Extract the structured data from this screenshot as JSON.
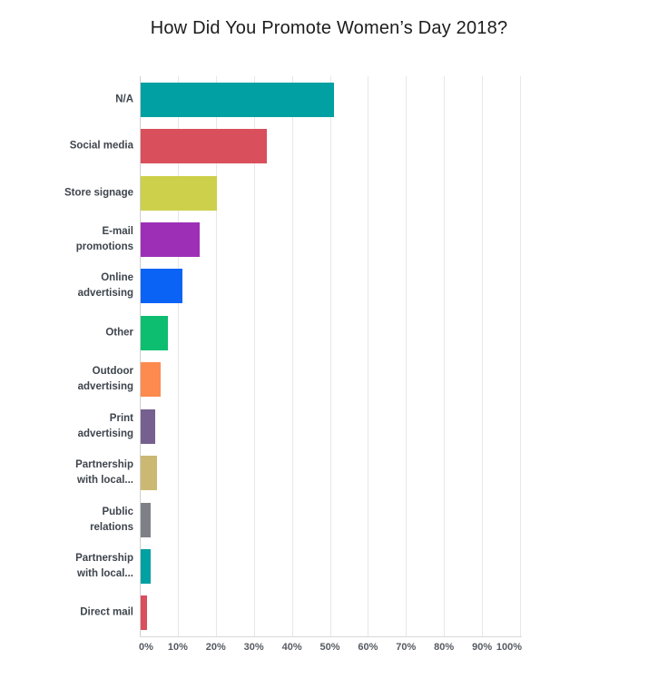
{
  "page": {
    "background": "#ffffff"
  },
  "chart_data": {
    "type": "bar",
    "orientation": "horizontal",
    "title": "How Did You Promote Women’s Day 2018?",
    "categories": [
      "N/A",
      "Social media",
      "Store signage",
      "E-mail promotions",
      "Online advertising",
      "Other",
      "Outdoor advertising",
      "Print advertising",
      "Partnership with local...",
      "Public relations",
      "Partnership with local...",
      "Direct mail"
    ],
    "category_display_lines": [
      [
        "N/A"
      ],
      [
        "Social media"
      ],
      [
        "Store signage"
      ],
      [
        "E-mail",
        "promotions"
      ],
      [
        "Online",
        "advertising"
      ],
      [
        "Other"
      ],
      [
        "Outdoor",
        "advertising"
      ],
      [
        "Print",
        "advertising"
      ],
      [
        "Partnership",
        "with local..."
      ],
      [
        "Public",
        "relations"
      ],
      [
        "Partnership",
        "with local..."
      ],
      [
        "Direct mail"
      ]
    ],
    "values_percent": [
      50.8,
      33.2,
      20.0,
      15.5,
      11.0,
      7.2,
      5.2,
      3.8,
      4.2,
      2.5,
      2.6,
      1.7
    ],
    "bar_colors": [
      "#00a0a3",
      "#d94f5c",
      "#ccd04b",
      "#9d2fb7",
      "#0b63f6",
      "#0ebe70",
      "#fd8a4e",
      "#76608f",
      "#cbb873",
      "#7d8187",
      "#00a0a3",
      "#d94f5c"
    ],
    "x_tick_labels": [
      "0%",
      "10%",
      "20%",
      "30%",
      "40%",
      "50%",
      "60%",
      "70%",
      "80%",
      "90%",
      "100%"
    ],
    "xlim": [
      0,
      100
    ],
    "grid": "vertical",
    "legend": "none",
    "gridline_color": "#e7e7e7",
    "axis_line_color": "#cfcfcf",
    "category_label_color": "#3e454d",
    "tick_label_color": "#565b62",
    "title_color": "#1c1c1c"
  }
}
